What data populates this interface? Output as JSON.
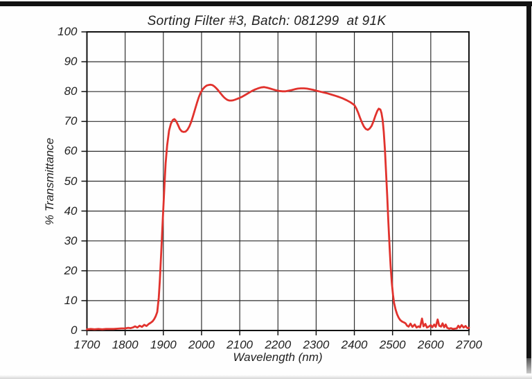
{
  "page": {
    "kind": "scanned spectrophotometer printout",
    "background_color": "#fefefe",
    "scan_edge_color": "#121212"
  },
  "chart_data": {
    "type": "line",
    "title": "Sorting Filter #3, Batch: 081299  at 91K",
    "xlabel": "Wavelength (nm)",
    "ylabel": "% Transmittance",
    "xlim": [
      1700,
      2700
    ],
    "ylim": [
      0,
      100
    ],
    "x_ticks": [
      "1700",
      "1800",
      "1900",
      "2000",
      "2100",
      "2200",
      "2300",
      "2400",
      "2500",
      "2600",
      "2700"
    ],
    "y_ticks": [
      "0",
      "10",
      "20",
      "30",
      "40",
      "50",
      "60",
      "70",
      "80",
      "90",
      "100"
    ],
    "grid": true,
    "legend": "none",
    "colors": {
      "line": "#e1322d",
      "grid": "#2e2e2e",
      "border": "#111111",
      "text": "#1f1f1f"
    },
    "series": [
      {
        "name": "transmittance",
        "points": [
          [
            1700,
            0.4
          ],
          [
            1710,
            0.5
          ],
          [
            1720,
            0.4
          ],
          [
            1730,
            0.5
          ],
          [
            1740,
            0.4
          ],
          [
            1750,
            0.5
          ],
          [
            1760,
            0.5
          ],
          [
            1770,
            0.5
          ],
          [
            1780,
            0.6
          ],
          [
            1790,
            0.7
          ],
          [
            1800,
            0.7
          ],
          [
            1808,
            0.9
          ],
          [
            1814,
            0.8
          ],
          [
            1820,
            1.0
          ],
          [
            1826,
            1.4
          ],
          [
            1832,
            1.0
          ],
          [
            1838,
            1.6
          ],
          [
            1844,
            1.2
          ],
          [
            1850,
            1.9
          ],
          [
            1856,
            1.5
          ],
          [
            1862,
            2.2
          ],
          [
            1867,
            2.6
          ],
          [
            1872,
            3.1
          ],
          [
            1876,
            3.8
          ],
          [
            1880,
            4.8
          ],
          [
            1884,
            6.2
          ],
          [
            1888,
            11
          ],
          [
            1891,
            17
          ],
          [
            1894,
            25
          ],
          [
            1897,
            33
          ],
          [
            1900,
            41
          ],
          [
            1903,
            49
          ],
          [
            1906,
            56
          ],
          [
            1910,
            62
          ],
          [
            1915,
            67
          ],
          [
            1920,
            69.3
          ],
          [
            1925,
            70.5
          ],
          [
            1929,
            70.8
          ],
          [
            1933,
            70.2
          ],
          [
            1938,
            68.9
          ],
          [
            1943,
            67.5
          ],
          [
            1948,
            66.7
          ],
          [
            1953,
            66.5
          ],
          [
            1958,
            66.6
          ],
          [
            1963,
            67.2
          ],
          [
            1968,
            68.3
          ],
          [
            1973,
            69.9
          ],
          [
            1978,
            71.9
          ],
          [
            1983,
            74.1
          ],
          [
            1988,
            76.2
          ],
          [
            1993,
            78.2
          ],
          [
            1998,
            79.7
          ],
          [
            2003,
            80.8
          ],
          [
            2008,
            81.5
          ],
          [
            2013,
            82.0
          ],
          [
            2018,
            82.2
          ],
          [
            2023,
            82.3
          ],
          [
            2028,
            82.2
          ],
          [
            2033,
            81.8
          ],
          [
            2038,
            81.2
          ],
          [
            2043,
            80.5
          ],
          [
            2048,
            79.7
          ],
          [
            2053,
            78.9
          ],
          [
            2058,
            78.2
          ],
          [
            2063,
            77.6
          ],
          [
            2068,
            77.2
          ],
          [
            2073,
            77.0
          ],
          [
            2078,
            77.0
          ],
          [
            2083,
            77.1
          ],
          [
            2088,
            77.3
          ],
          [
            2094,
            77.6
          ],
          [
            2100,
            77.9
          ],
          [
            2108,
            78.4
          ],
          [
            2116,
            79.0
          ],
          [
            2124,
            79.6
          ],
          [
            2132,
            80.2
          ],
          [
            2140,
            80.7
          ],
          [
            2148,
            81.1
          ],
          [
            2156,
            81.4
          ],
          [
            2164,
            81.5
          ],
          [
            2172,
            81.3
          ],
          [
            2180,
            81.0
          ],
          [
            2188,
            80.7
          ],
          [
            2196,
            80.4
          ],
          [
            2204,
            80.2
          ],
          [
            2212,
            80.1
          ],
          [
            2220,
            80.1
          ],
          [
            2228,
            80.3
          ],
          [
            2236,
            80.5
          ],
          [
            2244,
            80.8
          ],
          [
            2252,
            81.0
          ],
          [
            2260,
            81.1
          ],
          [
            2268,
            81.1
          ],
          [
            2276,
            81.0
          ],
          [
            2284,
            80.8
          ],
          [
            2292,
            80.6
          ],
          [
            2300,
            80.3
          ],
          [
            2310,
            80.0
          ],
          [
            2320,
            79.7
          ],
          [
            2330,
            79.4
          ],
          [
            2340,
            79.0
          ],
          [
            2350,
            78.6
          ],
          [
            2360,
            78.2
          ],
          [
            2370,
            77.7
          ],
          [
            2380,
            77.1
          ],
          [
            2390,
            76.4
          ],
          [
            2400,
            75.5
          ],
          [
            2405,
            74.4
          ],
          [
            2410,
            72.9
          ],
          [
            2415,
            71.2
          ],
          [
            2420,
            69.6
          ],
          [
            2425,
            68.3
          ],
          [
            2430,
            67.5
          ],
          [
            2435,
            67.2
          ],
          [
            2440,
            67.6
          ],
          [
            2445,
            68.5
          ],
          [
            2450,
            70.0
          ],
          [
            2455,
            71.9
          ],
          [
            2460,
            73.5
          ],
          [
            2464,
            74.3
          ],
          [
            2468,
            74.0
          ],
          [
            2471,
            72.8
          ],
          [
            2474,
            70.5
          ],
          [
            2477,
            66.5
          ],
          [
            2480,
            60.5
          ],
          [
            2483,
            53
          ],
          [
            2486,
            45
          ],
          [
            2489,
            36.5
          ],
          [
            2492,
            28.5
          ],
          [
            2495,
            21.5
          ],
          [
            2498,
            16
          ],
          [
            2501,
            12
          ],
          [
            2504,
            9.2
          ],
          [
            2508,
            7.0
          ],
          [
            2512,
            5.4
          ],
          [
            2516,
            4.3
          ],
          [
            2520,
            3.5
          ],
          [
            2525,
            3.0
          ],
          [
            2530,
            2.7
          ],
          [
            2534,
            2.4
          ],
          [
            2538,
            1.6
          ],
          [
            2542,
            1.3
          ],
          [
            2547,
            2.3
          ],
          [
            2552,
            1.2
          ],
          [
            2558,
            2.0
          ],
          [
            2563,
            1.0
          ],
          [
            2568,
            1.4
          ],
          [
            2572,
            1.1
          ],
          [
            2577,
            4.0
          ],
          [
            2581,
            1.4
          ],
          [
            2586,
            2.2
          ],
          [
            2590,
            1.0
          ],
          [
            2595,
            1.3
          ],
          [
            2600,
            1.8
          ],
          [
            2604,
            1.1
          ],
          [
            2609,
            2.0
          ],
          [
            2613,
            1.2
          ],
          [
            2618,
            3.7
          ],
          [
            2622,
            1.6
          ],
          [
            2627,
            1.3
          ],
          [
            2631,
            2.4
          ],
          [
            2635,
            1.1
          ],
          [
            2639,
            2.0
          ],
          [
            2643,
            0.9
          ],
          [
            2648,
            0.6
          ],
          [
            2653,
            0.8
          ],
          [
            2658,
            0.5
          ],
          [
            2663,
            0.6
          ],
          [
            2668,
            0.7
          ],
          [
            2672,
            1.6
          ],
          [
            2676,
            0.9
          ],
          [
            2681,
            1.8
          ],
          [
            2686,
            1.0
          ],
          [
            2691,
            1.5
          ],
          [
            2696,
            0.8
          ],
          [
            2700,
            0.9
          ]
        ]
      }
    ]
  }
}
